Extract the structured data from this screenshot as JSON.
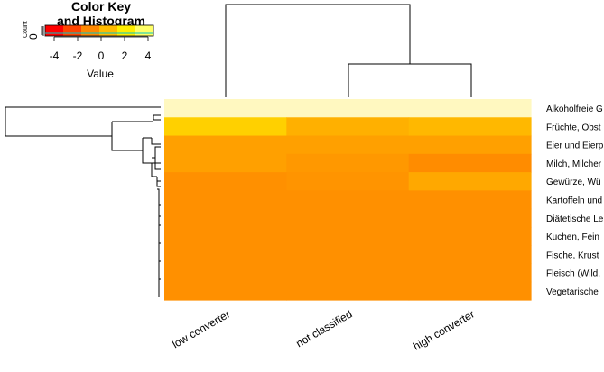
{
  "chart_data": {
    "type": "heatmap",
    "color_key": {
      "title_line1": "Color Key",
      "title_line2": "and Histogram",
      "xlabel": "Value",
      "ylabel": "Count",
      "y_tick": "0",
      "ticks": [
        "-4",
        "-2",
        "0",
        "2",
        "4"
      ],
      "range": [
        -5,
        5
      ],
      "colors": [
        "#ff0000",
        "#ff4400",
        "#ff8800",
        "#ffbb00",
        "#ffee00",
        "#ffff66"
      ]
    },
    "columns": [
      "low converter",
      "not classified",
      "high converter"
    ],
    "rows": [
      "Alkoholfreie G",
      "Früchte, Obst",
      "Eier und Eierp",
      "Milch, Milcher",
      "Gewürze, Wü",
      "Kartoffeln und",
      "Diätetische Le",
      "Kuchen, Fein",
      "Fische, Krust",
      "Fleisch (Wild,",
      "Vegetarische"
    ],
    "values": [
      [
        4.6,
        4.6,
        4.6
      ],
      [
        3.2,
        2.5,
        2.7
      ],
      [
        2.0,
        2.0,
        2.0
      ],
      [
        2.0,
        1.9,
        1.6
      ],
      [
        1.5,
        1.6,
        2.1
      ],
      [
        1.5,
        1.5,
        1.5
      ],
      [
        1.5,
        1.5,
        1.5
      ],
      [
        1.5,
        1.5,
        1.5
      ],
      [
        1.5,
        1.5,
        1.5
      ],
      [
        1.5,
        1.5,
        1.5
      ],
      [
        1.5,
        1.5,
        1.5
      ]
    ],
    "colors": [
      [
        "#fff8c0",
        "#fff8c0",
        "#fff8c0"
      ],
      [
        "#ffd000",
        "#ffb000",
        "#ffb800"
      ],
      [
        "#ffa000",
        "#ffa000",
        "#ffa000"
      ],
      [
        "#ffa000",
        "#ff9800",
        "#ff8c00"
      ],
      [
        "#ff9000",
        "#ff9400",
        "#ffa800"
      ],
      [
        "#ff9000",
        "#ff9000",
        "#ff9000"
      ],
      [
        "#ff9000",
        "#ff9000",
        "#ff9000"
      ],
      [
        "#ff9000",
        "#ff9000",
        "#ff9000"
      ],
      [
        "#ff9000",
        "#ff9000",
        "#ff9000"
      ],
      [
        "#ff9000",
        "#ff9000",
        "#ff9000"
      ],
      [
        "#ff9000",
        "#ff9000",
        "#ff9000"
      ]
    ]
  }
}
